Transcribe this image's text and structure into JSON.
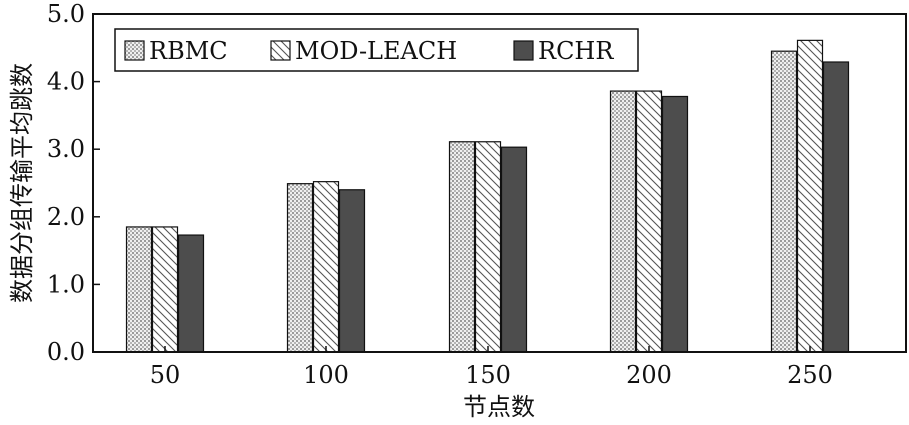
{
  "chart_data": {
    "type": "bar",
    "xlabel": "节点数",
    "ylabel": "数据分组传输平均跳数",
    "categories": [
      "50",
      "100",
      "150",
      "200",
      "250"
    ],
    "ylim": [
      0,
      5
    ],
    "yticks": [
      "0.0",
      "1.0",
      "2.0",
      "3.0",
      "4.0",
      "5.0"
    ],
    "grid": false,
    "legend_position": "top-left",
    "series": [
      {
        "name": "RBMC",
        "values": [
          1.85,
          2.49,
          3.11,
          3.86,
          4.45
        ],
        "color": "#d8d8d8",
        "pattern": "dots"
      },
      {
        "name": "MOD-LEACH",
        "values": [
          1.85,
          2.52,
          3.11,
          3.86,
          4.61
        ],
        "color": "#ffffff",
        "pattern": "hatch"
      },
      {
        "name": "RCHR",
        "values": [
          1.73,
          2.4,
          3.03,
          3.78,
          4.29
        ],
        "color": "#4d4d4d",
        "pattern": "solid"
      }
    ]
  }
}
